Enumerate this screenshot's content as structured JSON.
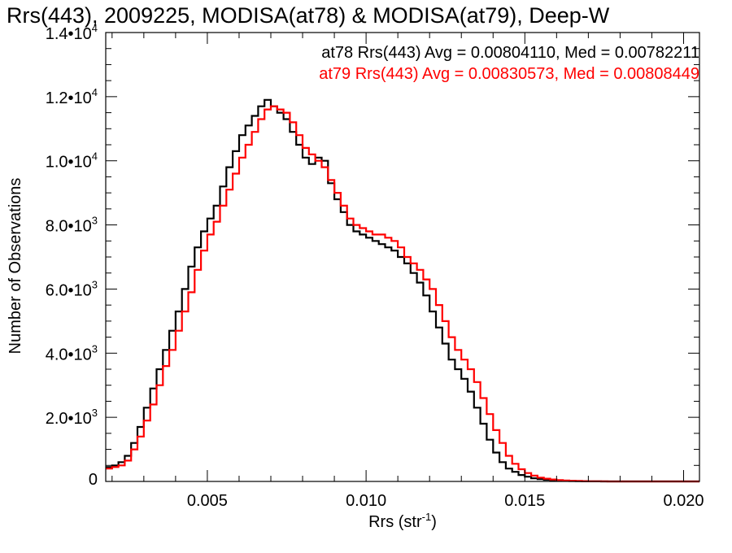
{
  "chart_data": {
    "type": "line",
    "step": true,
    "title": "Rrs(443), 2009225, MODISA(at78) & MODISA(at79), Deep-W",
    "xlabel": "Rrs (str",
    "xlabel_sup": "-1",
    "xlabel_close": ")",
    "ylabel": "Number of Observations",
    "xlim": [
      0.0018,
      0.0205
    ],
    "ylim": [
      0,
      14000
    ],
    "x_ticks": [
      {
        "value": 0.005,
        "label": "0.005"
      },
      {
        "value": 0.01,
        "label": "0.010"
      },
      {
        "value": 0.015,
        "label": "0.015"
      },
      {
        "value": 0.02,
        "label": "0.020"
      }
    ],
    "y_ticks": [
      {
        "value": 0,
        "mant": "0",
        "exp": ""
      },
      {
        "value": 2000,
        "mant": "2.0•10",
        "exp": "3"
      },
      {
        "value": 4000,
        "mant": "4.0•10",
        "exp": "3"
      },
      {
        "value": 6000,
        "mant": "6.0•10",
        "exp": "3"
      },
      {
        "value": 8000,
        "mant": "8.0•10",
        "exp": "3"
      },
      {
        "value": 10000,
        "mant": "1.0•10",
        "exp": "4"
      },
      {
        "value": 12000,
        "mant": "1.2•10",
        "exp": "4"
      },
      {
        "value": 14000,
        "mant": "1.4•10",
        "exp": "4"
      }
    ],
    "series": [
      {
        "name": "at78",
        "color": "#000000",
        "annotation": "at78 Rrs(443) Avg = 0.00804110, Med = 0.00782211",
        "points": [
          [
            0.0018,
            450
          ],
          [
            0.002,
            500
          ],
          [
            0.0022,
            600
          ],
          [
            0.0024,
            800
          ],
          [
            0.0026,
            1200
          ],
          [
            0.0028,
            1700
          ],
          [
            0.003,
            2300
          ],
          [
            0.0032,
            2900
          ],
          [
            0.0034,
            3500
          ],
          [
            0.0036,
            4100
          ],
          [
            0.0038,
            4700
          ],
          [
            0.004,
            5300
          ],
          [
            0.0042,
            6000
          ],
          [
            0.0044,
            6700
          ],
          [
            0.0046,
            7300
          ],
          [
            0.0048,
            7800
          ],
          [
            0.005,
            8200
          ],
          [
            0.0052,
            8600
          ],
          [
            0.0054,
            9200
          ],
          [
            0.0056,
            9800
          ],
          [
            0.0058,
            10300
          ],
          [
            0.006,
            10800
          ],
          [
            0.0062,
            11100
          ],
          [
            0.0064,
            11400
          ],
          [
            0.0066,
            11700
          ],
          [
            0.0068,
            11900
          ],
          [
            0.007,
            11700
          ],
          [
            0.0072,
            11500
          ],
          [
            0.0074,
            11300
          ],
          [
            0.0076,
            10900
          ],
          [
            0.0078,
            10500
          ],
          [
            0.008,
            10100
          ],
          [
            0.0082,
            9900
          ],
          [
            0.0084,
            10100
          ],
          [
            0.0086,
            10000
          ],
          [
            0.0088,
            9300
          ],
          [
            0.009,
            8800
          ],
          [
            0.0092,
            8400
          ],
          [
            0.0094,
            8000
          ],
          [
            0.0096,
            7800
          ],
          [
            0.0098,
            7700
          ],
          [
            0.01,
            7600
          ],
          [
            0.0102,
            7500
          ],
          [
            0.0104,
            7400
          ],
          [
            0.0106,
            7300
          ],
          [
            0.0108,
            7200
          ],
          [
            0.011,
            7000
          ],
          [
            0.0112,
            6800
          ],
          [
            0.0114,
            6500
          ],
          [
            0.0116,
            6200
          ],
          [
            0.0118,
            5800
          ],
          [
            0.012,
            5300
          ],
          [
            0.0122,
            4800
          ],
          [
            0.0124,
            4300
          ],
          [
            0.0126,
            3800
          ],
          [
            0.0128,
            3500
          ],
          [
            0.013,
            3200
          ],
          [
            0.0132,
            2800
          ],
          [
            0.0134,
            2300
          ],
          [
            0.0136,
            1800
          ],
          [
            0.0138,
            1300
          ],
          [
            0.014,
            900
          ],
          [
            0.0142,
            600
          ],
          [
            0.0144,
            400
          ],
          [
            0.0146,
            300
          ],
          [
            0.0148,
            200
          ],
          [
            0.015,
            150
          ],
          [
            0.0152,
            100
          ],
          [
            0.0154,
            70
          ],
          [
            0.0156,
            50
          ],
          [
            0.0158,
            35
          ],
          [
            0.016,
            25
          ],
          [
            0.0162,
            18
          ],
          [
            0.0164,
            12
          ],
          [
            0.0166,
            8
          ],
          [
            0.0168,
            5
          ],
          [
            0.017,
            3
          ],
          [
            0.0172,
            2
          ],
          [
            0.0174,
            1
          ],
          [
            0.0176,
            0
          ],
          [
            0.0205,
            0
          ]
        ]
      },
      {
        "name": "at79",
        "color": "#ff0000",
        "annotation": "at79 Rrs(443) Avg = 0.00830573, Med = 0.00808449",
        "points": [
          [
            0.0018,
            400
          ],
          [
            0.002,
            450
          ],
          [
            0.0022,
            500
          ],
          [
            0.0024,
            650
          ],
          [
            0.0026,
            1000
          ],
          [
            0.0028,
            1400
          ],
          [
            0.003,
            1900
          ],
          [
            0.0032,
            2400
          ],
          [
            0.0034,
            3000
          ],
          [
            0.0036,
            3600
          ],
          [
            0.0038,
            4100
          ],
          [
            0.004,
            4700
          ],
          [
            0.0042,
            5300
          ],
          [
            0.0044,
            5900
          ],
          [
            0.0046,
            6600
          ],
          [
            0.0048,
            7200
          ],
          [
            0.005,
            7700
          ],
          [
            0.0052,
            8100
          ],
          [
            0.0054,
            8600
          ],
          [
            0.0056,
            9100
          ],
          [
            0.0058,
            9600
          ],
          [
            0.006,
            10100
          ],
          [
            0.0062,
            10500
          ],
          [
            0.0064,
            10900
          ],
          [
            0.0066,
            11300
          ],
          [
            0.0068,
            11600
          ],
          [
            0.007,
            11700
          ],
          [
            0.0072,
            11600
          ],
          [
            0.0074,
            11500
          ],
          [
            0.0076,
            11200
          ],
          [
            0.0078,
            10800
          ],
          [
            0.008,
            10400
          ],
          [
            0.0082,
            10200
          ],
          [
            0.0084,
            10000
          ],
          [
            0.0086,
            9800
          ],
          [
            0.0088,
            9400
          ],
          [
            0.009,
            9000
          ],
          [
            0.0092,
            8600
          ],
          [
            0.0094,
            8200
          ],
          [
            0.0096,
            8000
          ],
          [
            0.0098,
            7900
          ],
          [
            0.01,
            7800
          ],
          [
            0.0102,
            7700
          ],
          [
            0.0104,
            7700
          ],
          [
            0.0106,
            7600
          ],
          [
            0.0108,
            7500
          ],
          [
            0.011,
            7300
          ],
          [
            0.0112,
            7000
          ],
          [
            0.0114,
            6800
          ],
          [
            0.0116,
            6600
          ],
          [
            0.0118,
            6300
          ],
          [
            0.012,
            6000
          ],
          [
            0.0122,
            5500
          ],
          [
            0.0124,
            5000
          ],
          [
            0.0126,
            4500
          ],
          [
            0.0128,
            4100
          ],
          [
            0.013,
            3800
          ],
          [
            0.0132,
            3500
          ],
          [
            0.0134,
            3100
          ],
          [
            0.0136,
            2600
          ],
          [
            0.0138,
            2100
          ],
          [
            0.014,
            1600
          ],
          [
            0.0142,
            1200
          ],
          [
            0.0144,
            800
          ],
          [
            0.0146,
            550
          ],
          [
            0.0148,
            380
          ],
          [
            0.015,
            260
          ],
          [
            0.0152,
            180
          ],
          [
            0.0154,
            120
          ],
          [
            0.0156,
            85
          ],
          [
            0.0158,
            60
          ],
          [
            0.016,
            42
          ],
          [
            0.0162,
            30
          ],
          [
            0.0164,
            20
          ],
          [
            0.0166,
            14
          ],
          [
            0.0168,
            10
          ],
          [
            0.017,
            6
          ],
          [
            0.0172,
            4
          ],
          [
            0.0174,
            2
          ],
          [
            0.0176,
            1
          ],
          [
            0.0178,
            0
          ],
          [
            0.0205,
            0
          ]
        ]
      }
    ]
  }
}
